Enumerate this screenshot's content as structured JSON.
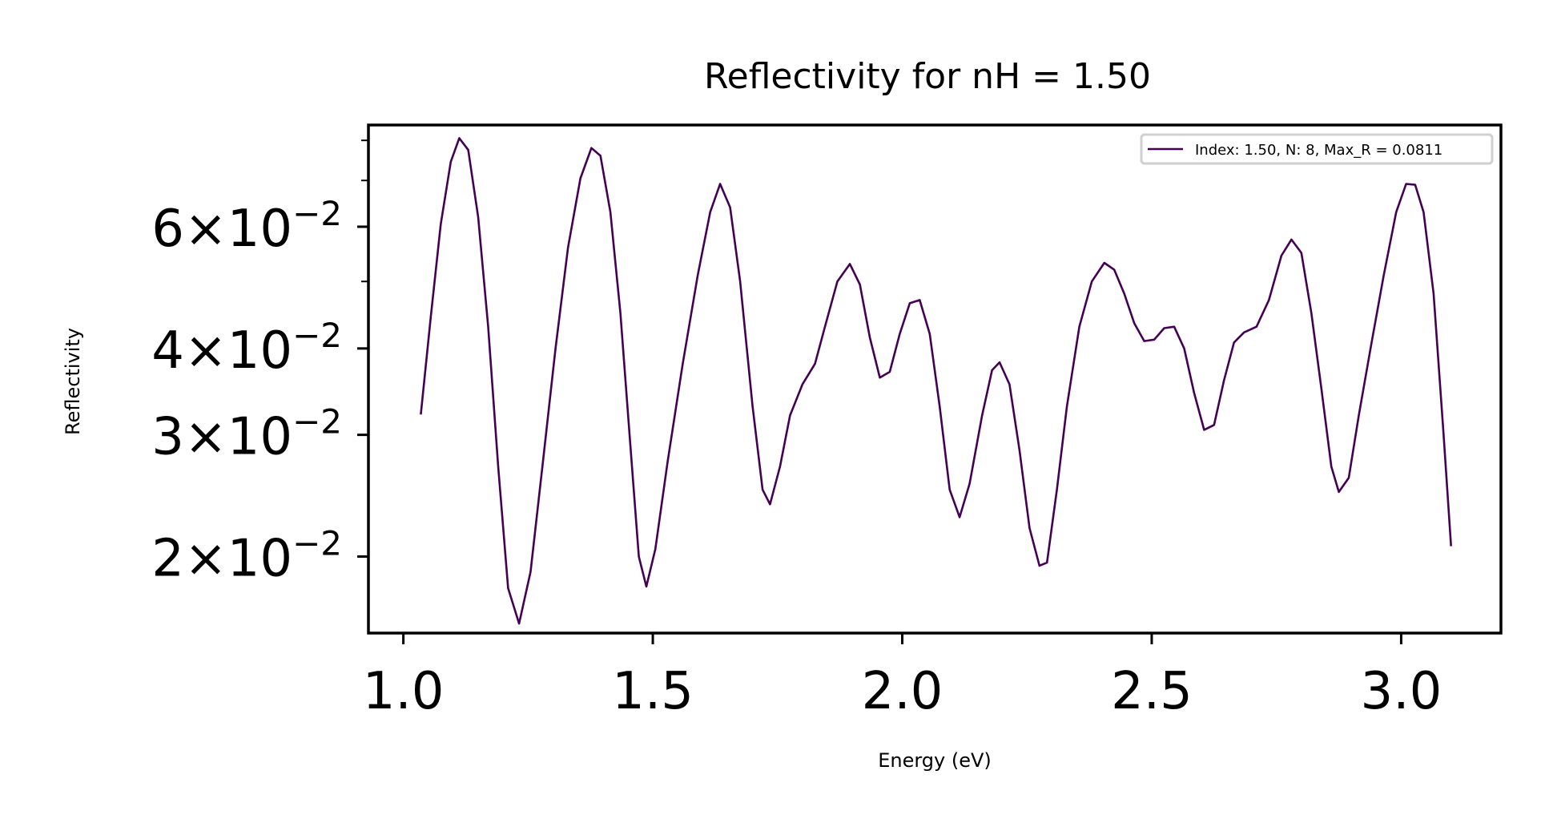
{
  "chart_data": {
    "type": "line",
    "title": "Reflectivity for nH = 1.50",
    "xlabel": "Energy (eV)",
    "ylabel": "Reflectivity",
    "yscale": "log",
    "xlim": [
      0.93,
      3.2
    ],
    "ylim": [
      0.0155,
      0.0842
    ],
    "xticks": [
      {
        "value": 1.0,
        "label": "1.0"
      },
      {
        "value": 1.5,
        "label": "1.5"
      },
      {
        "value": 2.0,
        "label": "2.0"
      },
      {
        "value": 2.5,
        "label": "2.5"
      },
      {
        "value": 3.0,
        "label": "3.0"
      }
    ],
    "yticks": [
      {
        "value": 0.02,
        "mantissa": "2",
        "times": "×",
        "base": "10",
        "exp": "−2"
      },
      {
        "value": 0.03,
        "mantissa": "3",
        "times": "×",
        "base": "10",
        "exp": "−2"
      },
      {
        "value": 0.04,
        "mantissa": "4",
        "times": "×",
        "base": "10",
        "exp": "−2"
      },
      {
        "value": 0.06,
        "mantissa": "6",
        "times": "×",
        "base": "10",
        "exp": "−2"
      }
    ],
    "yminor_ticks": [
      0.05,
      0.07,
      0.08
    ],
    "grid": false,
    "legend_position": "upper-right",
    "series": [
      {
        "name": "Index: 1.50, N: 8, Max_R = 0.0811",
        "color": "#440154",
        "points": [
          [
            1.035,
            0.0321
          ],
          [
            1.055,
            0.0445
          ],
          [
            1.075,
            0.0605
          ],
          [
            1.095,
            0.0745
          ],
          [
            1.112,
            0.0806
          ],
          [
            1.13,
            0.0775
          ],
          [
            1.15,
            0.062
          ],
          [
            1.17,
            0.043
          ],
          [
            1.19,
            0.027
          ],
          [
            1.21,
            0.018
          ],
          [
            1.232,
            0.016
          ],
          [
            1.255,
            0.019
          ],
          [
            1.28,
            0.0275
          ],
          [
            1.305,
            0.04
          ],
          [
            1.33,
            0.056
          ],
          [
            1.355,
            0.0705
          ],
          [
            1.377,
            0.078
          ],
          [
            1.395,
            0.076
          ],
          [
            1.415,
            0.063
          ],
          [
            1.435,
            0.045
          ],
          [
            1.455,
            0.029
          ],
          [
            1.472,
            0.02
          ],
          [
            1.487,
            0.0181
          ],
          [
            1.505,
            0.0205
          ],
          [
            1.53,
            0.0275
          ],
          [
            1.56,
            0.038
          ],
          [
            1.59,
            0.051
          ],
          [
            1.615,
            0.063
          ],
          [
            1.635,
            0.0692
          ],
          [
            1.655,
            0.064
          ],
          [
            1.675,
            0.05
          ],
          [
            1.7,
            0.033
          ],
          [
            1.72,
            0.025
          ],
          [
            1.735,
            0.0238
          ],
          [
            1.755,
            0.027
          ],
          [
            1.775,
            0.032
          ],
          [
            1.8,
            0.0355
          ],
          [
            1.825,
            0.038
          ],
          [
            1.845,
            0.043
          ],
          [
            1.87,
            0.05
          ],
          [
            1.895,
            0.053
          ],
          [
            1.915,
            0.0495
          ],
          [
            1.935,
            0.0415
          ],
          [
            1.955,
            0.0363
          ],
          [
            1.975,
            0.037
          ],
          [
            1.995,
            0.042
          ],
          [
            2.015,
            0.0465
          ],
          [
            2.035,
            0.047
          ],
          [
            2.055,
            0.042
          ],
          [
            2.075,
            0.033
          ],
          [
            2.095,
            0.025
          ],
          [
            2.115,
            0.0228
          ],
          [
            2.135,
            0.0255
          ],
          [
            2.16,
            0.032
          ],
          [
            2.18,
            0.0372
          ],
          [
            2.195,
            0.0382
          ],
          [
            2.215,
            0.0355
          ],
          [
            2.235,
            0.0285
          ],
          [
            2.255,
            0.022
          ],
          [
            2.275,
            0.0194
          ],
          [
            2.29,
            0.0196
          ],
          [
            2.31,
            0.025
          ],
          [
            2.33,
            0.033
          ],
          [
            2.355,
            0.043
          ],
          [
            2.38,
            0.05
          ],
          [
            2.405,
            0.0532
          ],
          [
            2.425,
            0.052
          ],
          [
            2.445,
            0.048
          ],
          [
            2.465,
            0.0435
          ],
          [
            2.485,
            0.041
          ],
          [
            2.505,
            0.0412
          ],
          [
            2.525,
            0.0428
          ],
          [
            2.545,
            0.043
          ],
          [
            2.565,
            0.04
          ],
          [
            2.585,
            0.0345
          ],
          [
            2.605,
            0.0305
          ],
          [
            2.625,
            0.031
          ],
          [
            2.645,
            0.036
          ],
          [
            2.665,
            0.0408
          ],
          [
            2.685,
            0.0422
          ],
          [
            2.71,
            0.043
          ],
          [
            2.735,
            0.047
          ],
          [
            2.76,
            0.0545
          ],
          [
            2.78,
            0.0575
          ],
          [
            2.8,
            0.055
          ],
          [
            2.82,
            0.045
          ],
          [
            2.84,
            0.035
          ],
          [
            2.86,
            0.027
          ],
          [
            2.875,
            0.0248
          ],
          [
            2.895,
            0.026
          ],
          [
            2.915,
            0.032
          ],
          [
            2.94,
            0.0405
          ],
          [
            2.965,
            0.051
          ],
          [
            2.99,
            0.063
          ],
          [
            3.01,
            0.0692
          ],
          [
            3.028,
            0.069
          ],
          [
            3.045,
            0.063
          ],
          [
            3.065,
            0.048
          ],
          [
            3.085,
            0.03
          ],
          [
            3.1,
            0.0207
          ]
        ]
      }
    ]
  }
}
